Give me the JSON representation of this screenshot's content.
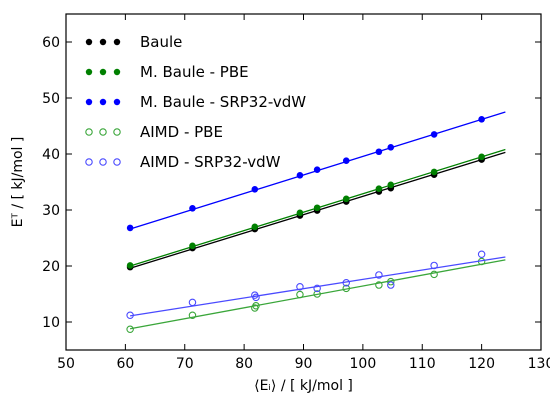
{
  "chart_data": {
    "type": "scatter",
    "title": "",
    "xlabel": "⟨Eᵢ⟩ / [ kJ/mol ]",
    "ylabel": "Eᵀ / [ kJ/mol ]",
    "xlim": [
      50,
      130
    ],
    "ylim": [
      5,
      65
    ],
    "xticks": [
      50,
      60,
      70,
      80,
      90,
      100,
      110,
      120,
      130
    ],
    "yticks": [
      10,
      20,
      30,
      40,
      50,
      60
    ],
    "grid": false,
    "legend_position": "top-left",
    "series": [
      {
        "name": "Baule",
        "color": "#000000",
        "marker": "filled",
        "x": [
          60.8,
          71.3,
          81.8,
          89.4,
          92.3,
          97.2,
          102.7,
          104.7,
          112.0,
          120.0
        ],
        "y": [
          19.8,
          23.2,
          26.6,
          29.0,
          29.9,
          31.5,
          33.3,
          33.9,
          36.3,
          39.0
        ],
        "fit": {
          "x0": 60.8,
          "x1": 124.0,
          "y0": 19.6,
          "y1": 40.3
        }
      },
      {
        "name": "M. Baule - PBE",
        "color": "#008000",
        "marker": "filled",
        "x": [
          60.8,
          71.3,
          81.8,
          89.4,
          92.3,
          97.2,
          102.7,
          104.7,
          112.0,
          120.0
        ],
        "y": [
          20.1,
          23.6,
          27.0,
          29.5,
          30.4,
          32.0,
          33.8,
          34.5,
          36.8,
          39.5
        ],
        "fit": {
          "x0": 60.8,
          "x1": 124.0,
          "y0": 20.0,
          "y1": 40.8
        }
      },
      {
        "name": "M. Baule - SRP32-vdW",
        "color": "#0000ff",
        "marker": "filled",
        "x": [
          60.8,
          71.3,
          81.8,
          89.4,
          92.3,
          97.2,
          102.7,
          104.7,
          112.0,
          120.0
        ],
        "y": [
          26.8,
          30.3,
          33.7,
          36.2,
          37.2,
          38.8,
          40.4,
          41.2,
          43.5,
          46.2
        ],
        "fit": {
          "x0": 60.8,
          "x1": 124.0,
          "y0": 26.6,
          "y1": 47.5
        }
      },
      {
        "name": "AIMD - PBE",
        "color": "#3aa63a",
        "marker": "open",
        "x": [
          60.8,
          71.3,
          81.8,
          82.0,
          89.4,
          92.3,
          97.2,
          102.7,
          104.7,
          112.0,
          120.0
        ],
        "y": [
          8.7,
          11.2,
          12.5,
          12.9,
          14.9,
          15.0,
          16.0,
          16.6,
          17.2,
          18.5,
          20.8
        ],
        "fit": {
          "x0": 60.8,
          "x1": 124.0,
          "y0": 8.8,
          "y1": 21.1
        }
      },
      {
        "name": "AIMD - SRP32-vdW",
        "color": "#4a4aff",
        "marker": "open",
        "x": [
          60.8,
          71.3,
          81.8,
          82.0,
          89.4,
          92.3,
          97.2,
          102.7,
          104.7,
          112.0,
          120.0
        ],
        "y": [
          11.2,
          13.5,
          14.8,
          14.4,
          16.3,
          16.0,
          17.0,
          18.4,
          16.6,
          20.1,
          22.1
        ],
        "fit": {
          "x0": 60.8,
          "x1": 124.0,
          "y0": 11.1,
          "y1": 21.6
        }
      }
    ]
  }
}
